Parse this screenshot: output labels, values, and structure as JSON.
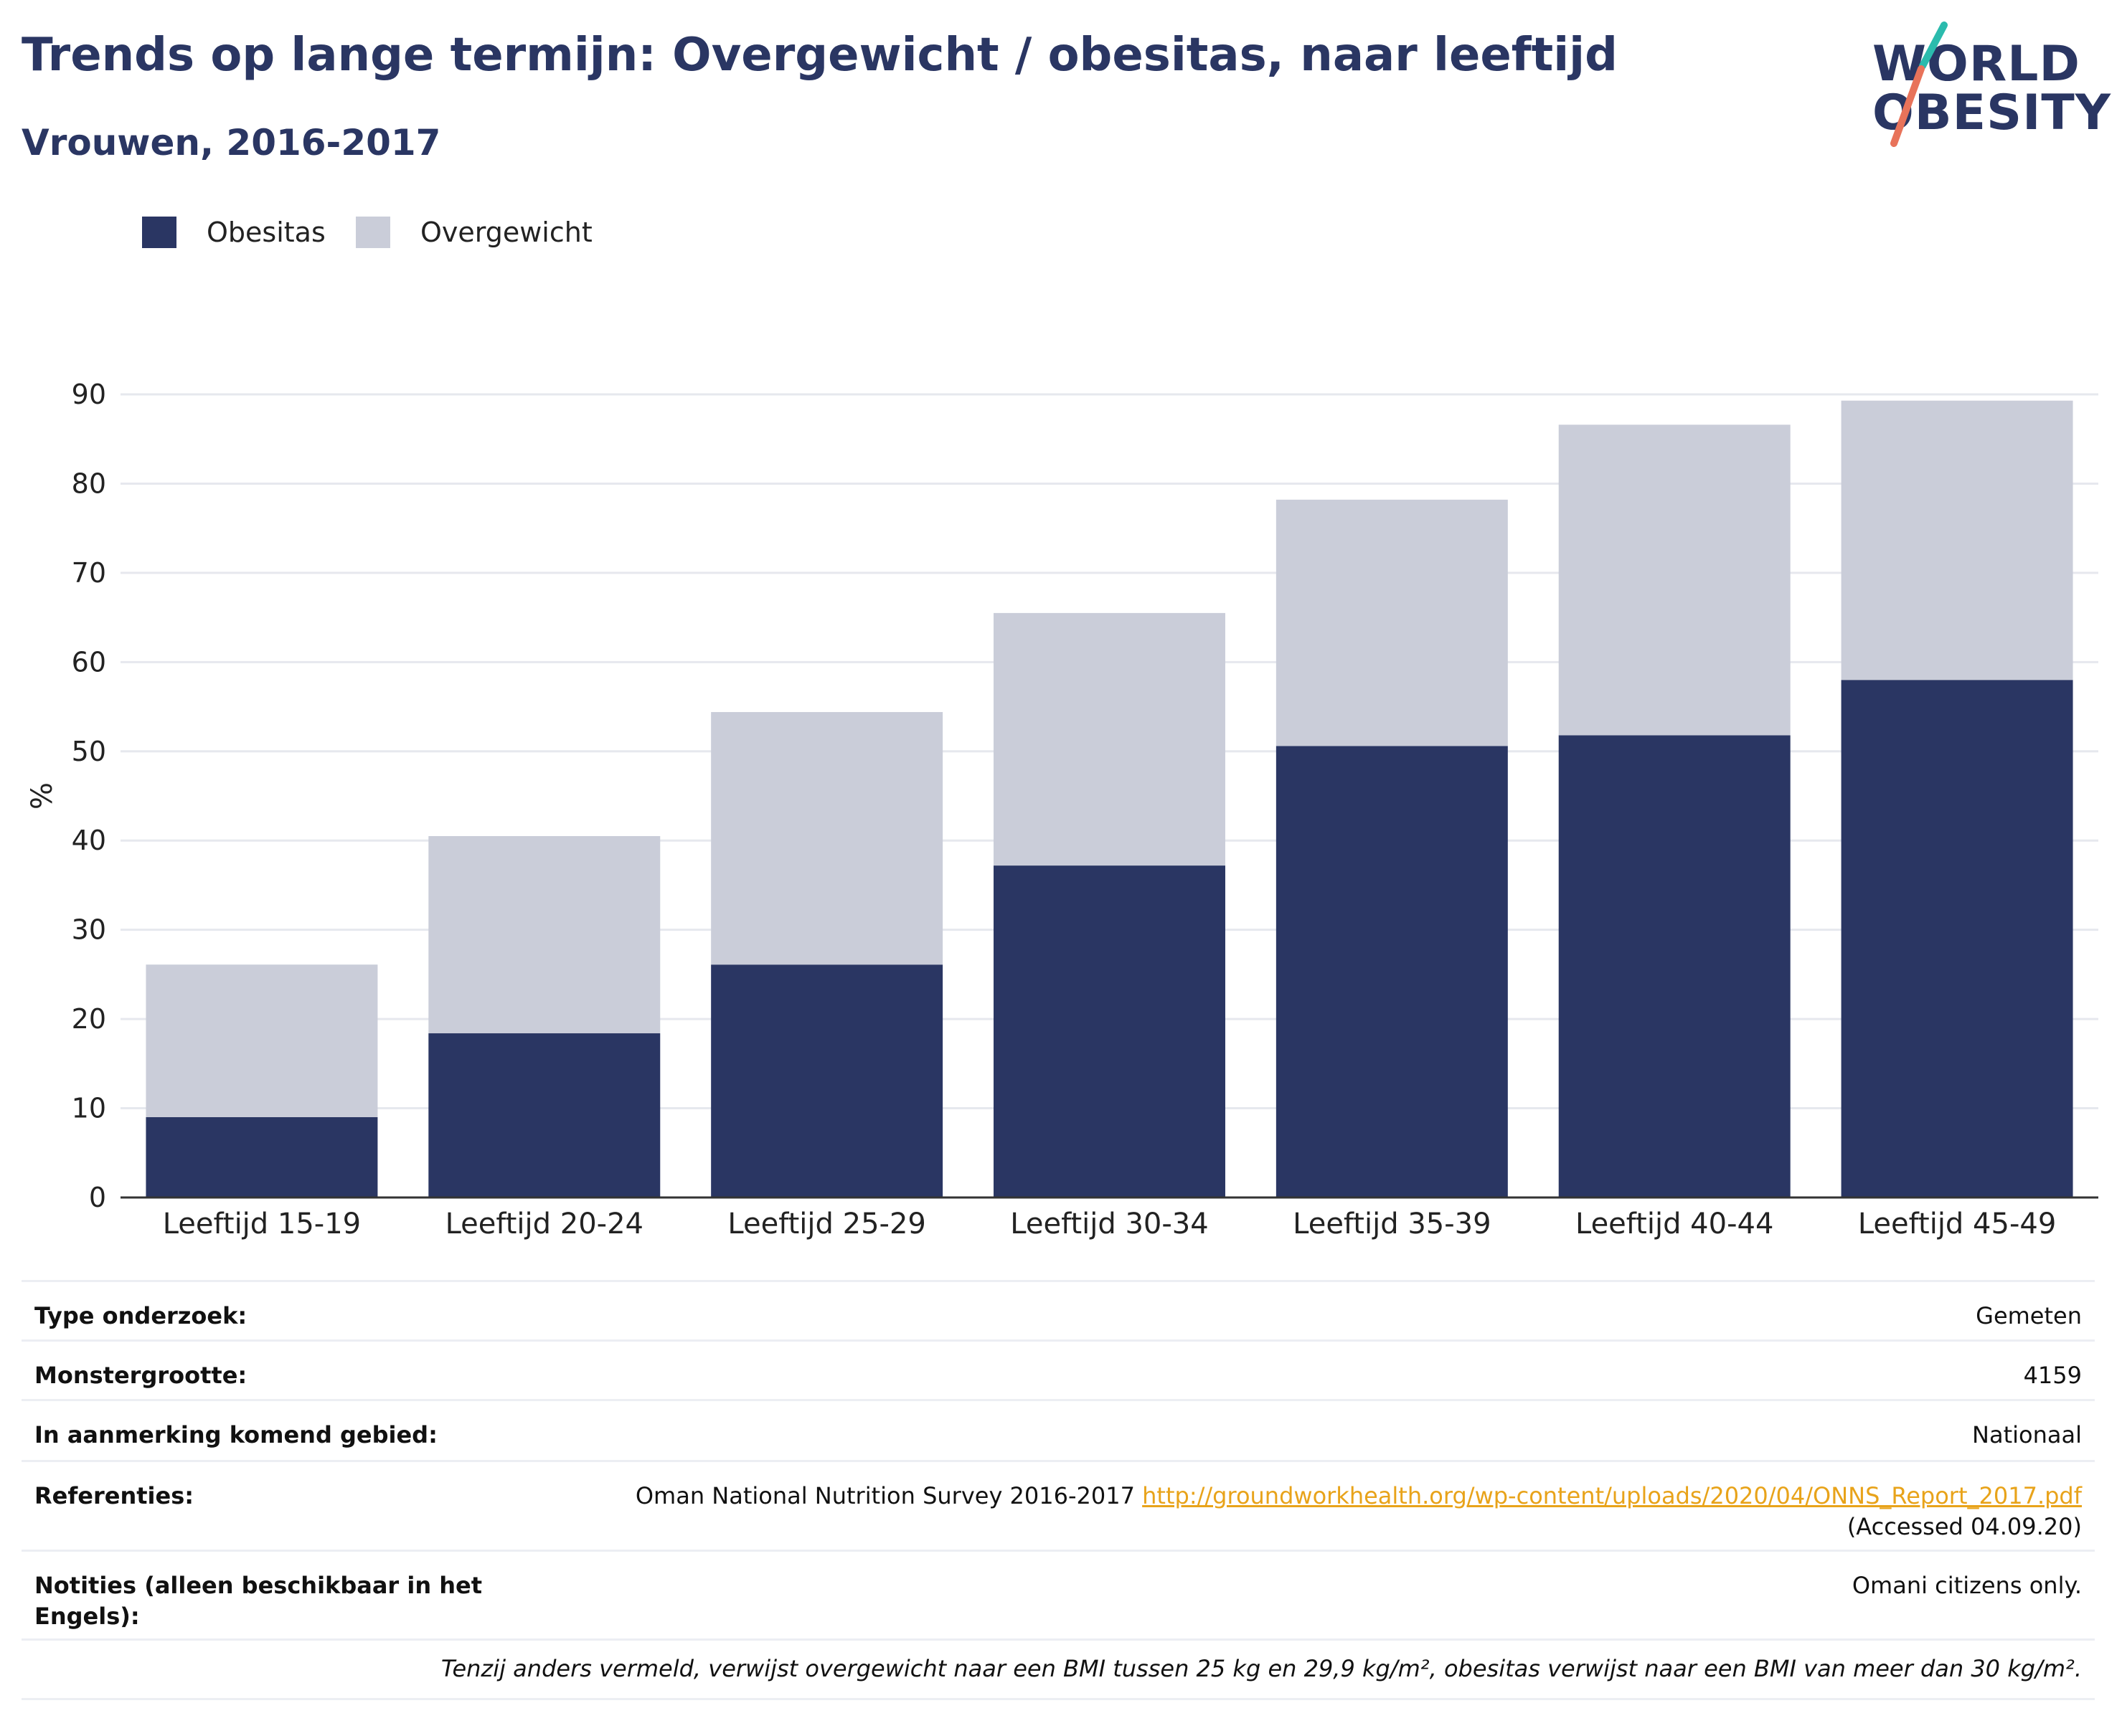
{
  "header": {
    "title": "Trends op lange termijn: Overgewicht / obesitas, naar leeftijd",
    "subtitle": "Vrouwen, 2016-2017"
  },
  "logo": {
    "line1": "WORLD",
    "line2": "OBESITY"
  },
  "colors": {
    "obesity": "#2a3663",
    "overweight": "#cacdd9",
    "title": "#2a3663",
    "link": "#e8a31a",
    "logo_teal": "#2bbbad",
    "logo_coral": "#e8735a"
  },
  "chart_data": {
    "type": "bar",
    "stacked": true,
    "categories": [
      "Leeftijd 15-19",
      "Leeftijd 20-24",
      "Leeftijd 25-29",
      "Leeftijd 30-34",
      "Leeftijd 35-39",
      "Leeftijd 40-44",
      "Leeftijd 45-49"
    ],
    "series": [
      {
        "name": "Obesitas",
        "values": [
          9.0,
          18.4,
          26.1,
          37.2,
          50.6,
          51.8,
          58.0
        ]
      },
      {
        "name": "Overgewicht",
        "values": [
          17.1,
          22.1,
          28.3,
          28.3,
          27.6,
          34.8,
          31.3
        ]
      }
    ],
    "ylabel": "%",
    "yticks": [
      0,
      10,
      20,
      30,
      40,
      50,
      60,
      70,
      80,
      90
    ],
    "ylim": [
      0,
      90
    ],
    "grid": true,
    "legend": "top-left"
  },
  "info": {
    "rows": [
      {
        "key": "Type onderzoek:",
        "value": "Gemeten"
      },
      {
        "key": "Monstergrootte:",
        "value": "4159"
      },
      {
        "key": "In aanmerking komend gebied:",
        "value": "Nationaal"
      }
    ],
    "references": {
      "key": "Referenties:",
      "text": "Oman National Nutrition Survey 2016-2017 ",
      "link": "http://groundworkhealth.org/wp-content/uploads/2020/04/ONNS_Report_2017.pdf",
      "accessed": "(Accessed 04.09.20)"
    },
    "notes": {
      "key": "Notities (alleen beschikbaar in het Engels):",
      "value": "Omani citizens only."
    }
  },
  "footnote": "Tenzij anders vermeld, verwijst overgewicht naar een BMI tussen 25 kg en 29,9 kg/m², obesitas verwijst naar een BMI van meer dan 30 kg/m²."
}
